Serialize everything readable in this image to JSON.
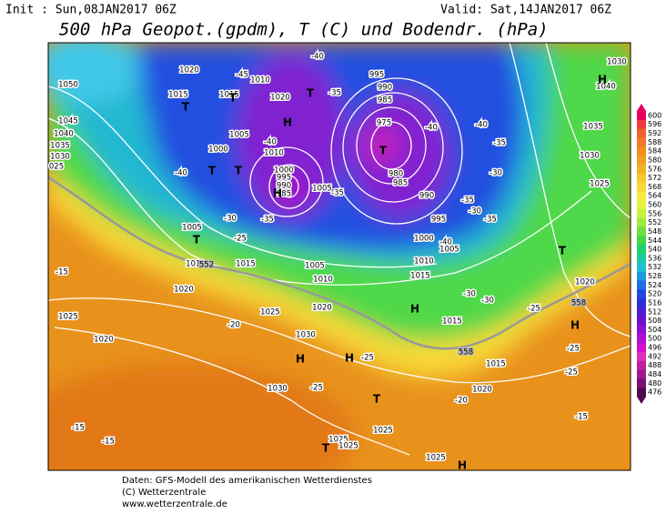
{
  "header": {
    "init": "Init : Sun,08JAN2017 06Z",
    "valid": "Valid: Sat,14JAN2017 06Z",
    "title": "500 hPa Geopot.(gpdm), T (C) und Bodendr. (hPa)"
  },
  "colorbar": {
    "levels": [
      "600",
      "596",
      "592",
      "588",
      "584",
      "580",
      "576",
      "572",
      "568",
      "564",
      "560",
      "556",
      "552",
      "548",
      "544",
      "540",
      "536",
      "532",
      "528",
      "524",
      "520",
      "516",
      "512",
      "508",
      "504",
      "500",
      "496",
      "492",
      "488",
      "484",
      "480",
      "476"
    ],
    "colors": [
      "#e8005a",
      "#f03c3c",
      "#f06030",
      "#f07828",
      "#f08c20",
      "#f0a020",
      "#f0b428",
      "#f4c830",
      "#f8d838",
      "#f8e840",
      "#e8f040",
      "#c8f040",
      "#a0e840",
      "#70e040",
      "#40d848",
      "#20d070",
      "#20c8a0",
      "#20c0d0",
      "#2098e0",
      "#2070e0",
      "#2048e0",
      "#3030d8",
      "#5020d0",
      "#7010d0",
      "#9010d0",
      "#b010d0",
      "#d010c8",
      "#e030c0",
      "#c020a0",
      "#a01890",
      "#801070",
      "#500850"
    ]
  },
  "map": {
    "isobar_labels": [
      "1050",
      "1045",
      "1040",
      "1035",
      "1030",
      "025",
      "1020",
      "1010",
      "1015",
      "1015",
      "1020",
      "1005",
      "1000",
      "1010",
      "1000",
      "995",
      "990",
      "985",
      "1005",
      "995",
      "990",
      "985",
      "975",
      "980",
      "985",
      "990",
      "995",
      "1000",
      "1005",
      "1010",
      "1015",
      "1015",
      "1015",
      "1020",
      "1005",
      "1010",
      "1015",
      "1005",
      "1010",
      "1020",
      "1020",
      "1025",
      "1025",
      "1020",
      "1030",
      "1030",
      "1025",
      "1025",
      "1025",
      "1025",
      "1030",
      "1035",
      "1030",
      "1025",
      "1020",
      "1040"
    ],
    "temperature_labels": [
      "-45",
      "-40",
      "-35",
      "-40",
      "-40",
      "-30",
      "-35",
      "-25",
      "-35",
      "-40",
      "-40",
      "-35",
      "-30",
      "-35",
      "-30",
      "-35",
      "-40",
      "-30",
      "-30",
      "-25",
      "-25",
      "-25",
      "-20",
      "-25",
      "-25",
      "-20",
      "-15",
      "-15",
      "-15",
      "-15"
    ],
    "contour_labels": [
      "552",
      "558",
      "558"
    ],
    "pressure_centers": [
      "H",
      "T",
      "T",
      "T",
      "H",
      "T",
      "T",
      "T",
      "H",
      "T",
      "T",
      "H",
      "H",
      "H",
      "T",
      "T",
      "H",
      "H"
    ]
  },
  "footer": {
    "source": "Daten: GFS-Modell des amerikanischen Wetterdienstes",
    "copyright": "(C) Wetterzentrale",
    "url": "www.wetterzentrale.de"
  }
}
